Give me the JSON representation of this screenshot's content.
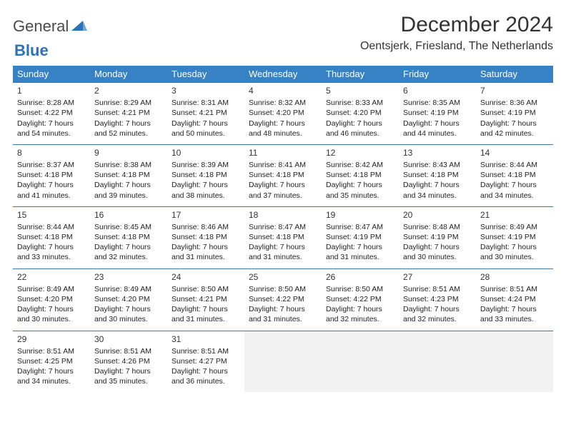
{
  "logo": {
    "general": "General",
    "blue": "Blue"
  },
  "title": "December 2024",
  "location": "Oentsjerk, Friesland, The Netherlands",
  "colors": {
    "header_bg": "#3682c4",
    "header_text": "#ffffff",
    "border": "#3d78a8",
    "empty_bg": "#f2f2f2",
    "text": "#222222",
    "logo_blue": "#2a73b8",
    "logo_gray": "#4a4a4a"
  },
  "layout": {
    "font_family": "Arial",
    "title_fontsize": 30,
    "location_fontsize": 16,
    "header_fontsize": 13,
    "cell_fontsize": 10.5,
    "daynum_fontsize": 12
  },
  "type": "table",
  "day_headers": [
    "Sunday",
    "Monday",
    "Tuesday",
    "Wednesday",
    "Thursday",
    "Friday",
    "Saturday"
  ],
  "weeks": [
    [
      {
        "n": "1",
        "sr": "8:28 AM",
        "ss": "4:22 PM",
        "dh": "7",
        "dm": "54"
      },
      {
        "n": "2",
        "sr": "8:29 AM",
        "ss": "4:21 PM",
        "dh": "7",
        "dm": "52"
      },
      {
        "n": "3",
        "sr": "8:31 AM",
        "ss": "4:21 PM",
        "dh": "7",
        "dm": "50"
      },
      {
        "n": "4",
        "sr": "8:32 AM",
        "ss": "4:20 PM",
        "dh": "7",
        "dm": "48"
      },
      {
        "n": "5",
        "sr": "8:33 AM",
        "ss": "4:20 PM",
        "dh": "7",
        "dm": "46"
      },
      {
        "n": "6",
        "sr": "8:35 AM",
        "ss": "4:19 PM",
        "dh": "7",
        "dm": "44"
      },
      {
        "n": "7",
        "sr": "8:36 AM",
        "ss": "4:19 PM",
        "dh": "7",
        "dm": "42"
      }
    ],
    [
      {
        "n": "8",
        "sr": "8:37 AM",
        "ss": "4:18 PM",
        "dh": "7",
        "dm": "41"
      },
      {
        "n": "9",
        "sr": "8:38 AM",
        "ss": "4:18 PM",
        "dh": "7",
        "dm": "39"
      },
      {
        "n": "10",
        "sr": "8:39 AM",
        "ss": "4:18 PM",
        "dh": "7",
        "dm": "38"
      },
      {
        "n": "11",
        "sr": "8:41 AM",
        "ss": "4:18 PM",
        "dh": "7",
        "dm": "37"
      },
      {
        "n": "12",
        "sr": "8:42 AM",
        "ss": "4:18 PM",
        "dh": "7",
        "dm": "35"
      },
      {
        "n": "13",
        "sr": "8:43 AM",
        "ss": "4:18 PM",
        "dh": "7",
        "dm": "34"
      },
      {
        "n": "14",
        "sr": "8:44 AM",
        "ss": "4:18 PM",
        "dh": "7",
        "dm": "34"
      }
    ],
    [
      {
        "n": "15",
        "sr": "8:44 AM",
        "ss": "4:18 PM",
        "dh": "7",
        "dm": "33"
      },
      {
        "n": "16",
        "sr": "8:45 AM",
        "ss": "4:18 PM",
        "dh": "7",
        "dm": "32"
      },
      {
        "n": "17",
        "sr": "8:46 AM",
        "ss": "4:18 PM",
        "dh": "7",
        "dm": "31"
      },
      {
        "n": "18",
        "sr": "8:47 AM",
        "ss": "4:18 PM",
        "dh": "7",
        "dm": "31"
      },
      {
        "n": "19",
        "sr": "8:47 AM",
        "ss": "4:19 PM",
        "dh": "7",
        "dm": "31"
      },
      {
        "n": "20",
        "sr": "8:48 AM",
        "ss": "4:19 PM",
        "dh": "7",
        "dm": "30"
      },
      {
        "n": "21",
        "sr": "8:49 AM",
        "ss": "4:19 PM",
        "dh": "7",
        "dm": "30"
      }
    ],
    [
      {
        "n": "22",
        "sr": "8:49 AM",
        "ss": "4:20 PM",
        "dh": "7",
        "dm": "30"
      },
      {
        "n": "23",
        "sr": "8:49 AM",
        "ss": "4:20 PM",
        "dh": "7",
        "dm": "30"
      },
      {
        "n": "24",
        "sr": "8:50 AM",
        "ss": "4:21 PM",
        "dh": "7",
        "dm": "31"
      },
      {
        "n": "25",
        "sr": "8:50 AM",
        "ss": "4:22 PM",
        "dh": "7",
        "dm": "31"
      },
      {
        "n": "26",
        "sr": "8:50 AM",
        "ss": "4:22 PM",
        "dh": "7",
        "dm": "32"
      },
      {
        "n": "27",
        "sr": "8:51 AM",
        "ss": "4:23 PM",
        "dh": "7",
        "dm": "32"
      },
      {
        "n": "28",
        "sr": "8:51 AM",
        "ss": "4:24 PM",
        "dh": "7",
        "dm": "33"
      }
    ],
    [
      {
        "n": "29",
        "sr": "8:51 AM",
        "ss": "4:25 PM",
        "dh": "7",
        "dm": "34"
      },
      {
        "n": "30",
        "sr": "8:51 AM",
        "ss": "4:26 PM",
        "dh": "7",
        "dm": "35"
      },
      {
        "n": "31",
        "sr": "8:51 AM",
        "ss": "4:27 PM",
        "dh": "7",
        "dm": "36"
      },
      null,
      null,
      null,
      null
    ]
  ]
}
